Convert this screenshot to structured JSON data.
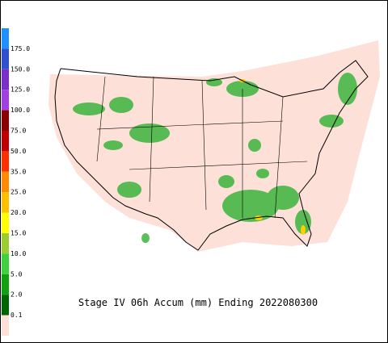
{
  "caption": "Stage IV 06h Accum (mm) Ending 2022080300",
  "legend": {
    "labels": [
      "175.0",
      "150.0",
      "125.0",
      "100.0",
      "75.0",
      "50.0",
      "35.0",
      "25.0",
      "20.0",
      "15.0",
      "10.0",
      "5.0",
      "2.0",
      "0.1"
    ],
    "colors": [
      "#1e90ff",
      "#3050d0",
      "#7a30c8",
      "#a040e0",
      "#8b0000",
      "#c00000",
      "#ff3000",
      "#ff8c00",
      "#ffc000",
      "#ffff00",
      "#9acd32",
      "#40d040",
      "#10a010",
      "#006400",
      "#fde0d8"
    ]
  }
}
